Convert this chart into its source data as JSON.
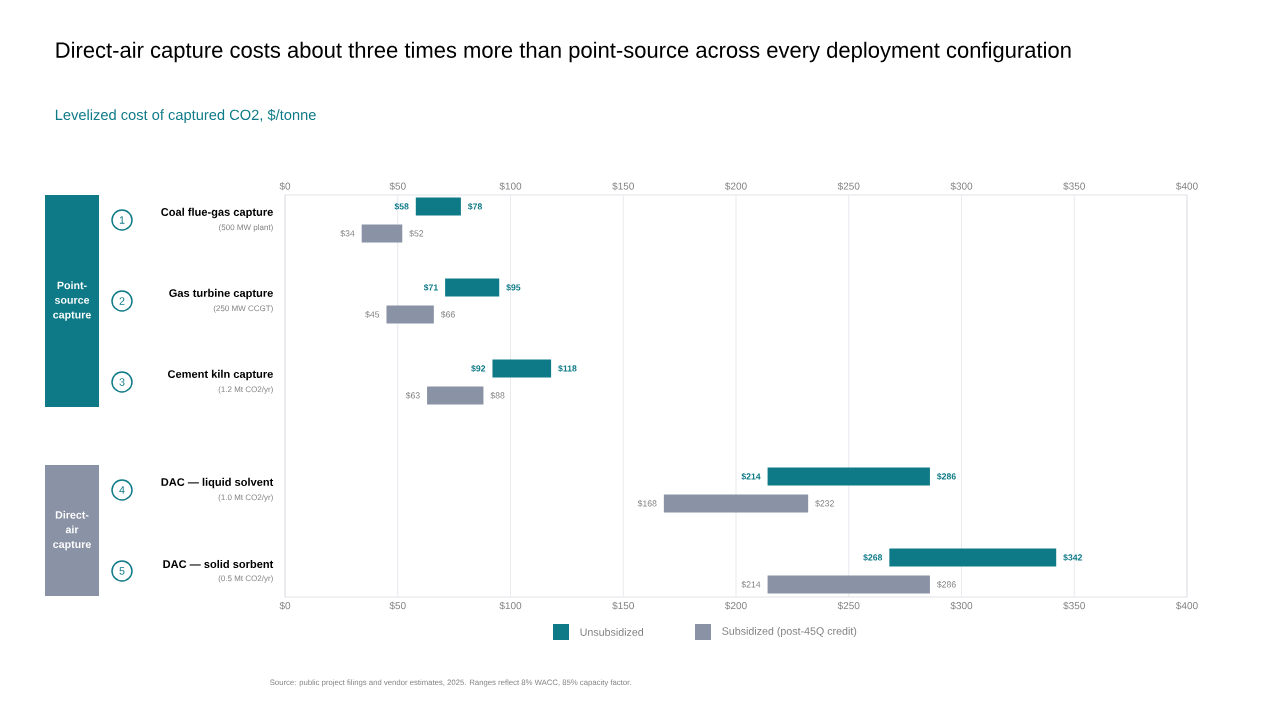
{
  "chart_data": {
    "type": "bar",
    "orientation": "horizontal",
    "title": "Direct-air capture costs about three times more than point-source across every deployment configuration",
    "subtitle": "Levelized cost of captured CO2, $/tonne",
    "categories": [
      "Coal flue-gas capture",
      "Gas turbine capture",
      "Cement kiln capture",
      "DAC — liquid solvent",
      "DAC — solid sorbent"
    ],
    "series": [
      {
        "name": "Unsubsidized",
        "color": "#0e7a87",
        "base": [
          58,
          71,
          92,
          214,
          268
        ],
        "values": [
          20,
          24,
          26,
          72,
          74
        ]
      },
      {
        "name": "Subsidized (post-45Q credit)",
        "color": "#8a92a5",
        "base": [
          34,
          45,
          63,
          168,
          214
        ],
        "values": [
          18,
          21,
          25,
          64,
          72
        ]
      }
    ],
    "xlim": [
      0,
      400
    ],
    "xticks": [
      {
        "value": 0,
        "label": "$0"
      },
      {
        "value": 50,
        "label": "$50"
      },
      {
        "value": 100,
        "label": "$100"
      },
      {
        "value": 150,
        "label": "$150"
      },
      {
        "value": 200,
        "label": "$200"
      },
      {
        "value": 250,
        "label": "$250"
      },
      {
        "value": 300,
        "label": "$300"
      },
      {
        "value": 350,
        "label": "$350"
      },
      {
        "value": 400,
        "label": "$400"
      }
    ],
    "x2lim": [
      0,
      400
    ],
    "x2ticks": [
      {
        "value": 0,
        "label": "$0"
      },
      {
        "value": 50,
        "label": "$50"
      },
      {
        "value": 100,
        "label": "$100"
      },
      {
        "value": 150,
        "label": "$150"
      },
      {
        "value": 200,
        "label": "$200"
      },
      {
        "value": 250,
        "label": "$250"
      },
      {
        "value": 300,
        "label": "$300"
      },
      {
        "value": 350,
        "label": "$350"
      },
      {
        "value": 400,
        "label": "$400"
      }
    ],
    "grid": "x",
    "legend": "bottom",
    "annotations": [
      "Point-source capture",
      "Direct-air capture",
      "1",
      "2",
      "3",
      "4",
      "5",
      "(500 MW plant)",
      "(250 MW CCGT)",
      "(1.2 Mt CO2/yr)",
      "(1.0 Mt CO2/yr)",
      "(0.5 Mt CO2/yr)",
      "Source: public project filings and vendor estimates, 2025. Ranges reflect 8% WACC, 85% capacity factor.",
      "$58",
      "$78",
      "$34",
      "$52",
      "$71",
      "$95",
      "$45",
      "$66",
      "$92",
      "$118",
      "$63",
      "$88",
      "$214",
      "$286",
      "$168",
      "$232",
      "$268",
      "$342",
      "$214",
      "$286"
    ]
  }
}
